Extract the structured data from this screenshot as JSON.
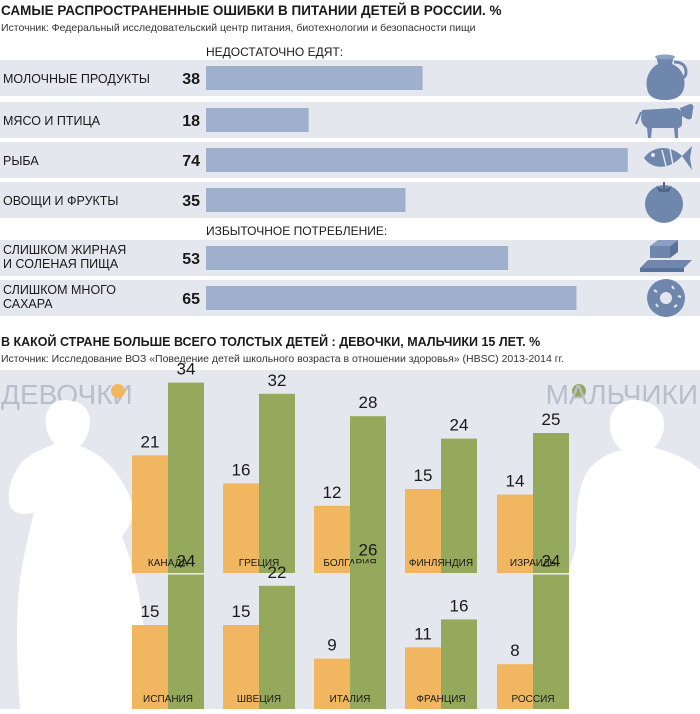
{
  "header1": {
    "title": "САМЫЕ РАСПРОСТРАНЕННЫЕ ОШИБКИ В ПИТАНИИ ДЕТЕЙ В РОССИИ. %",
    "source": "Источник:  Федеральный исследовательский центр питания, биотехнологии и безопасности пищи",
    "section_under": "НЕДОСТАТОЧНО ЕДЯТ:",
    "section_over": "ИЗБЫТОЧНОЕ ПОТРЕБЛЕНИЕ:"
  },
  "header2": {
    "title": "В КАКОЙ СТРАНЕ БОЛЬШЕ ВСЕГО ТОЛСТЫХ ДЕТЕЙ : ДЕВОЧКИ, МАЛЬЧИКИ 15 ЛЕТ. %",
    "source": "Источник: Исследование ВОЗ «Поведение детей школьного возраста в отношении здоровья» (HBSC) 2013-2014 гг."
  },
  "colors": {
    "bar_blue": "#9fb0cd",
    "row_bg": "#e4e7ed",
    "girls": "#f1b660",
    "boys": "#95a95c",
    "silhouette": "#ffffff",
    "panel_bg": "#e4e7ed",
    "icon": "#6f87ad",
    "bg_text": "#b8bfcc"
  },
  "chart_data": [
    {
      "type": "bar",
      "orientation": "horizontal",
      "title": "САМЫЕ РАСПРОСТРАНЕННЫЕ ОШИБКИ В ПИТАНИИ ДЕТЕЙ В РОССИИ. %",
      "categories": [
        "МОЛОЧНЫЕ ПРОДУКТЫ",
        "МЯСО И ПТИЦА",
        "РЫБА",
        "ОВОЩИ И ФРУКТЫ",
        "СЛИШКОМ ЖИРНАЯ И СОЛЕНАЯ ПИЩА",
        "СЛИШКОМ МНОГО САХАРА"
      ],
      "groups": [
        "НЕДОСТАТОЧНО ЕДЯТ:",
        "НЕДОСТАТОЧНО ЕДЯТ:",
        "НЕДОСТАТОЧНО ЕДЯТ:",
        "НЕДОСТАТОЧНО ЕДЯТ:",
        "ИЗБЫТОЧНОЕ ПОТРЕБЛЕНИЕ:",
        "ИЗБЫТОЧНОЕ ПОТРЕБЛЕНИЕ:"
      ],
      "icons": [
        "milk-jug-icon",
        "cow-icon",
        "fish-icon",
        "tomato-icon",
        "butter-icon",
        "donut-icon"
      ],
      "values": [
        38,
        18,
        74,
        35,
        53,
        65
      ],
      "xlim": [
        0,
        80
      ],
      "value_labels": [
        "38",
        "18",
        "74",
        "35",
        "53",
        "65"
      ]
    },
    {
      "type": "bar",
      "title": "В КАКОЙ СТРАНЕ БОЛЬШЕ ВСЕГО ТОЛСТЫХ ДЕТЕЙ : ДЕВОЧКИ, МАЛЬЧИКИ 15 ЛЕТ. %",
      "categories": [
        "КАНАДА",
        "ГРЕЦИЯ",
        "БОЛГАРИЯ",
        "ФИНЛЯНДИЯ",
        "ИЗРАИЛЬ",
        "ИСПАНИЯ",
        "ШВЕЦИЯ",
        "ИТАЛИЯ",
        "ФРАНЦИЯ",
        "РОССИЯ"
      ],
      "series": [
        {
          "name": "ДЕВОЧКИ",
          "values": [
            21,
            16,
            12,
            15,
            14,
            15,
            15,
            9,
            11,
            8
          ]
        },
        {
          "name": "МАЛЬЧИКИ",
          "values": [
            34,
            32,
            28,
            24,
            25,
            24,
            22,
            26,
            16,
            24
          ]
        }
      ],
      "value_labels": {
        "girls": [
          "21",
          "16",
          "12",
          "15",
          "14",
          "15",
          "15",
          "9",
          "11",
          "8"
        ],
        "boys": [
          "34",
          "32",
          "28",
          "24",
          "25",
          "24",
          "22",
          "26",
          "16",
          "24"
        ]
      },
      "ylim": [
        0,
        38
      ],
      "legend": {
        "girls": "ДЕВОЧКИ",
        "boys": "МАЛЬЧИКИ"
      }
    }
  ]
}
